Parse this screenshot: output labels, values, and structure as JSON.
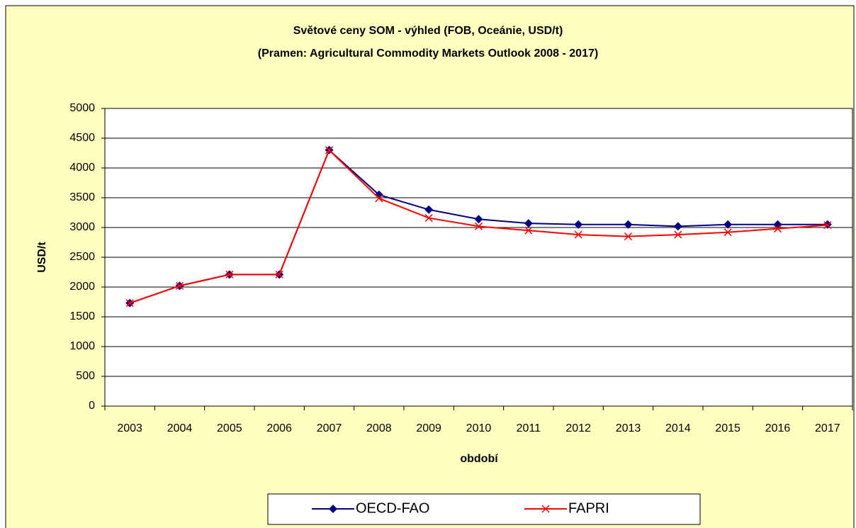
{
  "chart_data": {
    "type": "line",
    "title": "Světové ceny SOM - výhled (FOB, Oceánie, USD/t)",
    "subtitle": "(Pramen: Agricultural Commodity Markets Outlook 2008 - 2017)",
    "x_label": "období",
    "y_label": "USD/t",
    "categories": [
      "2003",
      "2004",
      "2005",
      "2006",
      "2007",
      "2008",
      "2009",
      "2010",
      "2011",
      "2012",
      "2013",
      "2014",
      "2015",
      "2016",
      "2017"
    ],
    "series": [
      {
        "name": "OECD-FAO",
        "color": "#000080",
        "marker": "diamond",
        "values": [
          1730,
          2020,
          2210,
          2210,
          4300,
          3550,
          3300,
          3140,
          3070,
          3050,
          3050,
          3020,
          3050,
          3050,
          3050
        ]
      },
      {
        "name": "FAPRI",
        "color": "#ff0000",
        "marker": "x",
        "values": [
          1730,
          2020,
          2210,
          2210,
          4300,
          3490,
          3160,
          3020,
          2950,
          2880,
          2850,
          2880,
          2920,
          2980,
          3040
        ]
      }
    ],
    "ylim": [
      0,
      5000
    ],
    "yticks": [
      0,
      500,
      1000,
      1500,
      2000,
      2500,
      3000,
      3500,
      4000,
      4500,
      5000
    ],
    "grid": true,
    "legend": "bottom"
  }
}
